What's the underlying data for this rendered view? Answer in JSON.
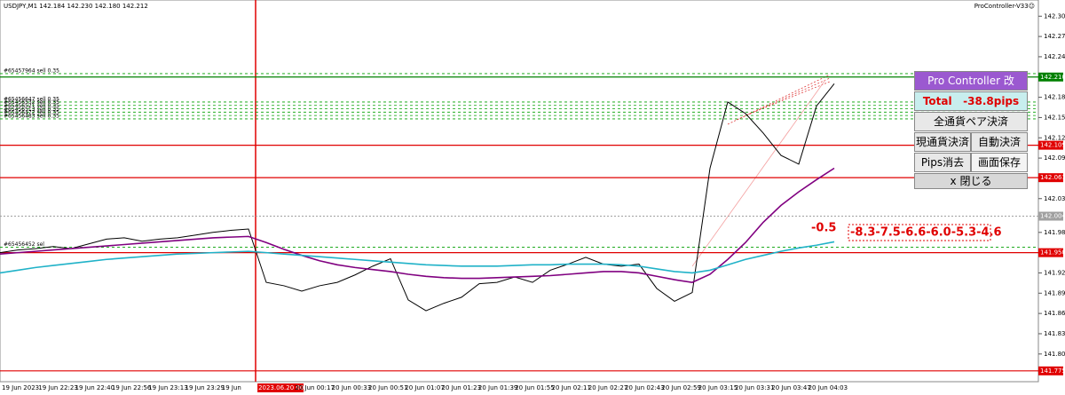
{
  "chart_data": {
    "type": "line",
    "title": "USDJPY,M1  142.184 142.230 142.180 142.212",
    "indicator": "ProController-V33☺",
    "ylim": [
      141.759,
      142.324
    ],
    "yticks": [
      {
        "value": 142.3,
        "label": "142.300"
      },
      142.27,
      142.24,
      142.18,
      142.15,
      142.12,
      142.09,
      142.03,
      141.98,
      141.92,
      141.89,
      141.86,
      141.83,
      {
        "value": 141.8,
        "label": "141.800"
      }
    ],
    "time_labels": [
      "19 Jun 2023",
      "19 Jun 22:23",
      "19 Jun 22:40",
      "19 Jun 22:56",
      "19 Jun 23:13",
      "19 Jun 23:29",
      "19 Jun",
      "2023.06.20 00:00",
      "20 Jun 00:17",
      "20 Jun 00:33",
      "20 Jun 00:51",
      "20 Jun 01:07",
      "20 Jun 01:23",
      "20 Jun 01:39",
      "20 Jun 01:55",
      "20 Jun 02:11",
      "20 Jun 02:27",
      "20 Jun 02:43",
      "20 Jun 02:59",
      "20 Jun 03:15",
      "20 Jun 03:31",
      "20 Jun 03:47",
      "20 Jun 04:03"
    ],
    "series": [
      {
        "name": "USDJPY",
        "color": "#000000",
        "values": [
          141.95,
          141.954,
          141.956,
          141.959,
          141.956,
          141.963,
          141.97,
          141.972,
          141.967,
          141.97,
          141.972,
          141.976,
          141.98,
          141.983,
          141.985,
          141.906,
          141.901,
          141.893,
          141.901,
          141.906,
          141.917,
          141.93,
          141.941,
          141.88,
          141.864,
          141.875,
          141.884,
          141.904,
          141.906,
          141.914,
          141.906,
          141.924,
          141.933,
          141.943,
          141.933,
          141.93,
          141.933,
          141.897,
          141.878,
          141.891,
          142.075,
          142.173,
          142.156,
          142.127,
          142.094,
          142.081,
          142.167,
          142.2
        ]
      },
      {
        "name": "MA slow",
        "color": "#800080",
        "values": [
          141.948,
          141.95,
          141.952,
          141.954,
          141.956,
          141.958,
          141.96,
          141.962,
          141.964,
          141.966,
          141.968,
          141.97,
          141.972,
          141.973,
          141.974,
          141.965,
          141.955,
          141.946,
          141.938,
          141.932,
          141.928,
          141.925,
          141.922,
          141.918,
          141.915,
          141.913,
          141.912,
          141.912,
          141.913,
          141.914,
          141.915,
          141.916,
          141.918,
          141.92,
          141.922,
          141.922,
          141.92,
          141.915,
          141.91,
          141.906,
          141.918,
          141.94,
          141.965,
          141.995,
          142.02,
          142.04,
          142.058,
          142.075
        ]
      },
      {
        "name": "MA long",
        "color": "#20b2c8",
        "values": [
          141.92,
          141.924,
          141.928,
          141.931,
          141.934,
          141.937,
          141.94,
          141.942,
          141.944,
          141.946,
          141.948,
          141.949,
          141.95,
          141.951,
          141.952,
          141.95,
          141.948,
          141.946,
          141.944,
          141.942,
          141.94,
          141.938,
          141.936,
          141.934,
          141.932,
          141.931,
          141.93,
          141.93,
          141.93,
          141.931,
          141.932,
          141.932,
          141.933,
          141.933,
          141.933,
          141.932,
          141.93,
          141.926,
          141.922,
          141.92,
          141.924,
          141.932,
          141.94,
          141.946,
          141.952,
          141.957,
          141.961,
          141.966
        ]
      }
    ],
    "levels": [
      {
        "value": 142.21,
        "label": "142.210",
        "color": "#008000"
      },
      {
        "value": 142.109,
        "label": "142.109",
        "color": "#e00000"
      },
      {
        "value": 142.061,
        "label": "142.061",
        "color": "#e00000"
      },
      {
        "value": 142.004,
        "label": "142.004",
        "color": "#a0a0a0"
      },
      {
        "value": 141.95,
        "label": "141.950",
        "color": "#e00000"
      },
      {
        "value": 141.775,
        "label": "141.775",
        "color": "#e00000"
      }
    ],
    "orders": [
      {
        "label": "#65457964 sell 0.35",
        "value": 142.215
      },
      {
        "label": "#65456647 sell 0.35",
        "value": 142.173
      },
      {
        "label": "#65456532 sell 0.35",
        "value": 142.168
      },
      {
        "label": "#65456521 sell 0.35",
        "value": 142.163
      },
      {
        "label": "#65456513 sell 0.35",
        "value": 142.158
      },
      {
        "label": "#65456472 sell 0.35",
        "value": 142.153
      },
      {
        "label": "#65456483 sell 0.35",
        "value": 142.148
      },
      {
        "label": "#65456452 sel",
        "value": 141.958
      }
    ],
    "pips_current": "-0.5",
    "pips_history": "-8.3-7.5-6.6-6.0-5.3-4.6",
    "panel": {
      "title": "Pro Controller 改",
      "total": "Total   -38.8pips",
      "all_close": "全通貨ペア決済",
      "current_close": "現通貨決済",
      "auto_close": "自動決済",
      "pips_clear": "Pips消去",
      "screenshot": "画面保存",
      "close": "x 閉じる"
    }
  }
}
